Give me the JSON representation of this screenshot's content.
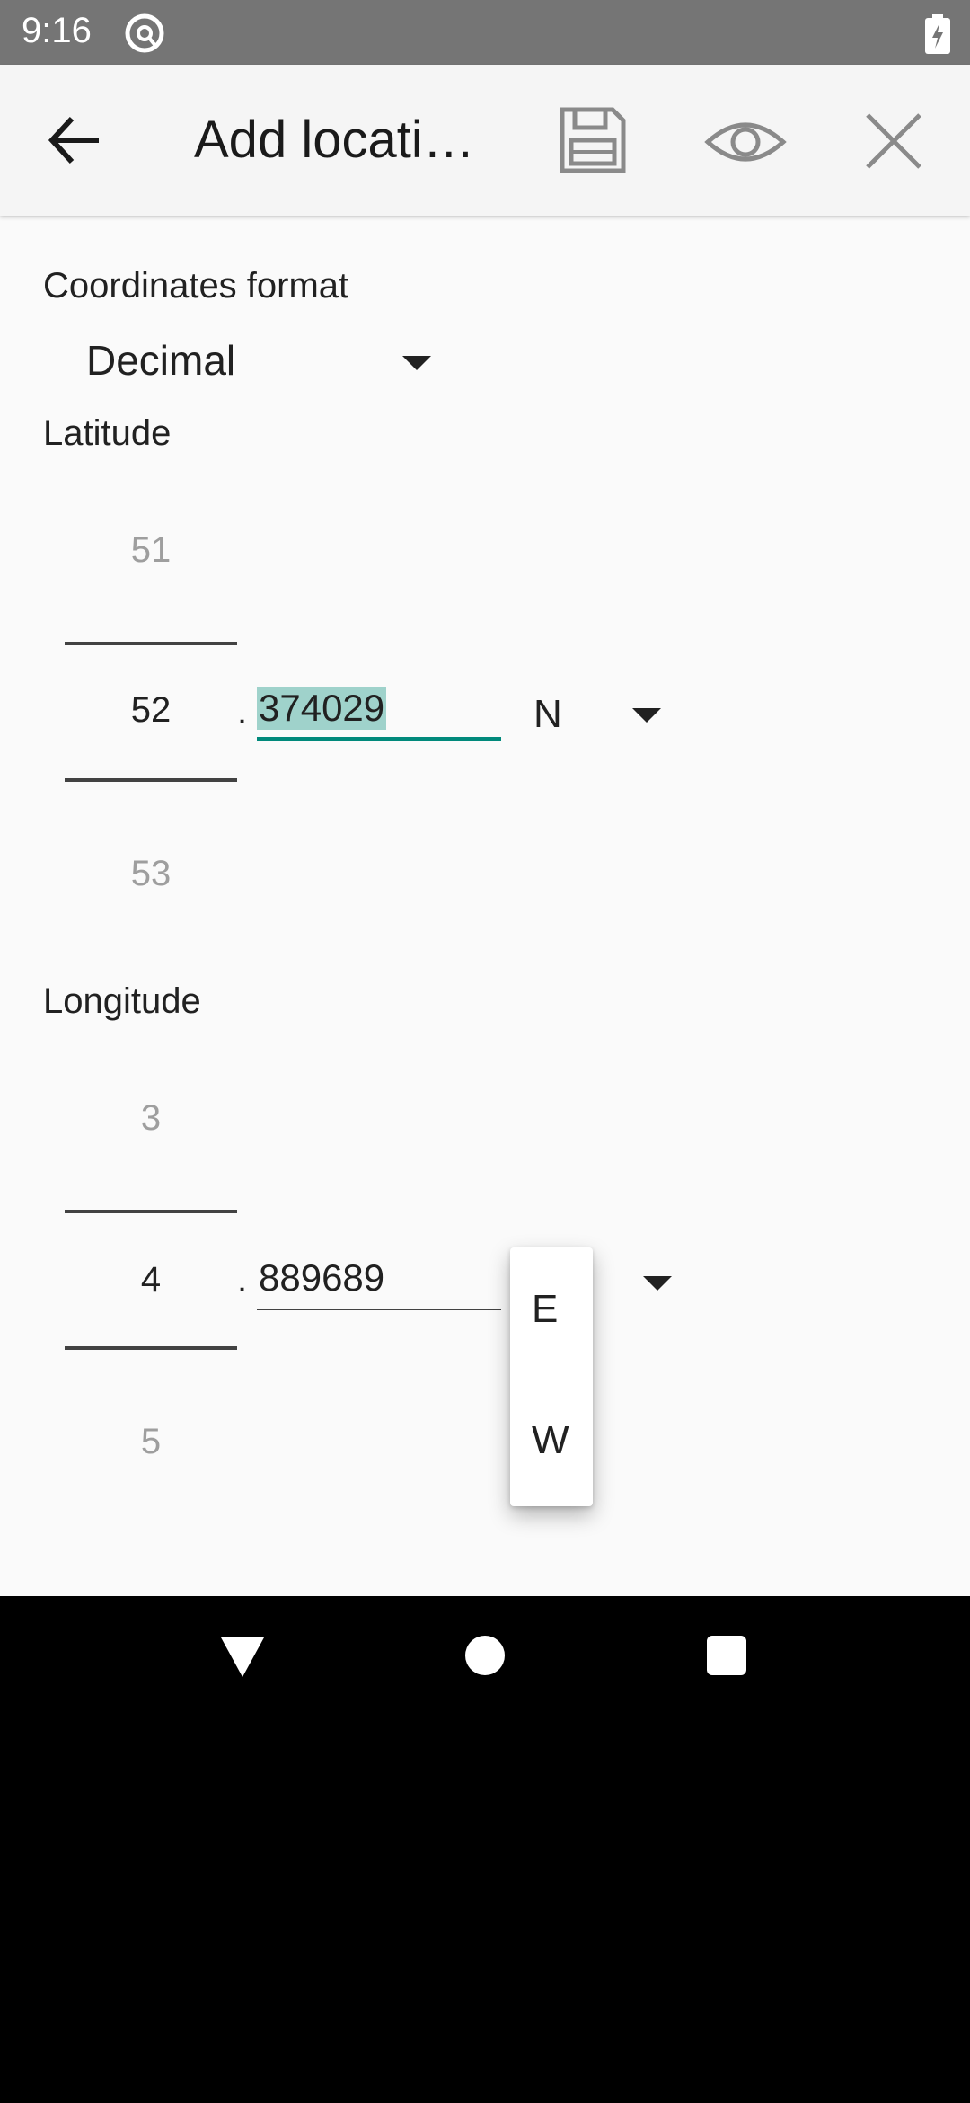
{
  "status_bar": {
    "time": "9:16",
    "icons": [
      "at-sign-icon",
      "battery-charging-icon"
    ]
  },
  "app_bar": {
    "title": "Add locati…",
    "actions": [
      "back-arrow-icon",
      "save-icon",
      "eye-icon",
      "close-icon"
    ]
  },
  "coordinates_format": {
    "label": "Coordinates format",
    "value": "Decimal"
  },
  "latitude": {
    "label": "Latitude",
    "picker_prev": "51",
    "picker_current": "52",
    "picker_next": "53",
    "separator": ".",
    "decimal": "374029",
    "hemisphere": "N"
  },
  "longitude": {
    "label": "Longitude",
    "picker_prev": "3",
    "picker_current": "4",
    "picker_next": "5",
    "separator": ".",
    "decimal": "889689",
    "hemisphere_options": [
      "E",
      "W"
    ]
  },
  "colors": {
    "accent": "#00897b",
    "selection": "#9fd2cb",
    "status_bar": "#757575"
  }
}
